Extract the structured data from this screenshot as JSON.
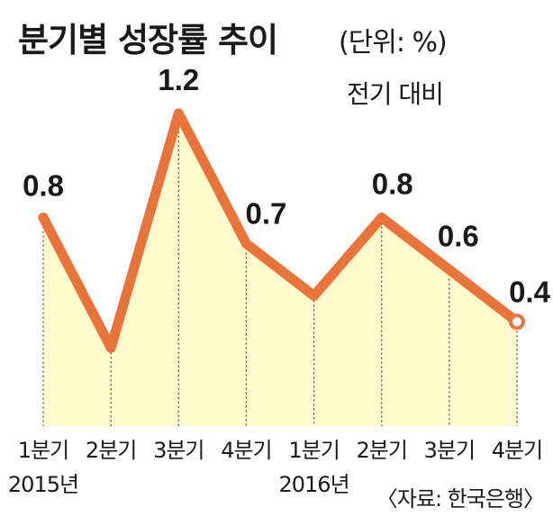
{
  "header": {
    "title": "분기별 성장률 추이",
    "unit": "(단위: %)",
    "subtitle": "전기 대비"
  },
  "footer": {
    "source": "〈자료: 한국은행〉"
  },
  "colors": {
    "line": "#E8743B",
    "fill": "#FFFBCC",
    "marker_fill": "#ffffff"
  },
  "chart_data": {
    "type": "line",
    "title": "분기별 성장률 추이",
    "unit": "%",
    "categories": [
      "1분기",
      "2분기",
      "3분기",
      "4분기",
      "1분기",
      "2분기",
      "3분기",
      "4분기"
    ],
    "year_labels": [
      "2015년",
      "",
      "",
      "",
      "2016년",
      "",
      "",
      ""
    ],
    "series": [
      {
        "values": [
          0.8,
          0.3,
          1.2,
          0.7,
          0.5,
          0.8,
          0.6,
          0.4
        ],
        "data_labels": [
          "0.8",
          "",
          "1.2",
          "0.7",
          "",
          "0.8",
          "0.6",
          "0.4"
        ]
      }
    ],
    "ylim": [
      0,
      1.4
    ],
    "grid": false,
    "area_fill": true,
    "last_point_marker": "hollow-circle"
  }
}
